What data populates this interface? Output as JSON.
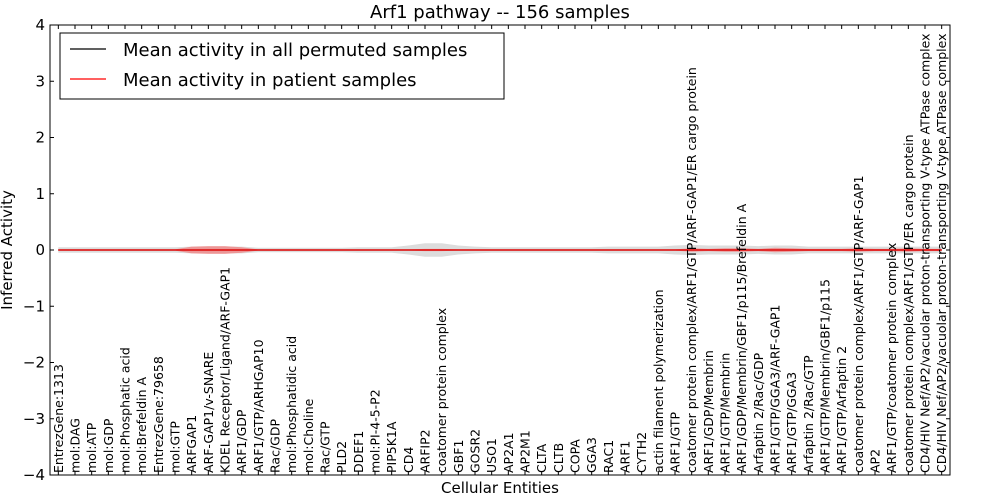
{
  "chart_data": {
    "type": "line",
    "title": "Arf1 pathway -- 156 samples",
    "xlabel": "Cellular Entities",
    "ylabel": "Inferred Activity",
    "ylim": [
      -4,
      4
    ],
    "yticks": [
      -4,
      -3,
      -2,
      -1,
      0,
      1,
      2,
      3,
      4
    ],
    "legend_position": "top-left",
    "grid": false,
    "categories": [
      "EntrezGene:1313",
      "mol:DAG",
      "mol:ATP",
      "mol:GDP",
      "mol:Phosphatic acid",
      "mol:Brefeldin A",
      "EntrezGene:79658",
      "mol:GTP",
      "ARFGAP1",
      "ARF-GAP1/v-SNARE",
      "KDEL Receptor/Ligand/ARF-GAP1",
      "ARF1/GDP",
      "ARF1/GTP/ARHGAP10",
      "Rac/GDP",
      "mol:Phosphatidic acid",
      "mol:Choline",
      "Rac/GTP",
      "PLD2",
      "DDEF1",
      "mol:PI-4-5-P2",
      "PIP5K1A",
      "CD4",
      "ARFIP2",
      "coatomer protein complex",
      "GBF1",
      "GOSR2",
      "USO1",
      "AP2A1",
      "AP2M1",
      "CLTA",
      "CLTB",
      "COPA",
      "GGA3",
      "RAC1",
      "ARF1",
      "CYTH2",
      "actin filament polymerization",
      "ARF1/GTP",
      "coatomer protein complex/ARF1/GTP/ARF-GAP1/ER cargo protein",
      "ARF1/GDP/Membrin",
      "ARF1/GTP/Membrin",
      "ARF1/GDP/Membrin/GBF1/p115/Brefeldin A",
      "Arfaptin 2/Rac/GDP",
      "ARF1/GTP/GGA3/ARF-GAP1",
      "ARF1/GTP/GGA3",
      "Arfaptin 2/Rac/GTP",
      "ARF1/GTP/Membrin/GBF1/p115",
      "ARF1/GTP/Arfaptin 2",
      "coatomer protein complex/ARF1/GTP/ARF-GAP1",
      "AP2",
      "ARF1/GTP/coatomer protein complex",
      "coatomer protein complex/ARF1/GTP/ER cargo protein",
      "CD4/HIV Nef/AP2/vacuolar proton-transporting V-type ATPase complex",
      "CD4/HIV Nef/AP2/vacuolar proton-transporting V-type ATPase complex"
    ],
    "series": [
      {
        "name": "Mean activity in all permuted samples",
        "color": "#000000",
        "band_color": "#d3d3d3",
        "values": [
          0,
          0,
          0,
          0,
          0,
          0,
          0,
          0,
          0,
          0,
          0,
          0,
          0,
          0,
          0,
          0,
          0,
          0,
          0,
          0,
          0,
          0,
          0,
          0,
          0,
          0,
          0,
          0,
          0,
          0,
          0,
          0,
          0,
          0,
          0,
          0,
          0,
          0,
          0,
          0,
          0,
          0,
          0,
          0,
          0,
          0,
          0,
          0,
          0,
          0,
          0,
          0,
          0,
          0
        ],
        "band": [
          0.05,
          0.05,
          0.05,
          0.05,
          0.05,
          0.05,
          0.05,
          0.05,
          0.06,
          0.06,
          0.06,
          0.06,
          0.04,
          0.04,
          0.04,
          0.04,
          0.04,
          0.04,
          0.05,
          0.05,
          0.05,
          0.08,
          0.12,
          0.12,
          0.08,
          0.06,
          0.05,
          0.05,
          0.05,
          0.05,
          0.05,
          0.05,
          0.05,
          0.06,
          0.06,
          0.06,
          0.06,
          0.08,
          0.09,
          0.08,
          0.08,
          0.08,
          0.07,
          0.08,
          0.08,
          0.06,
          0.06,
          0.06,
          0.06,
          0.06,
          0.06,
          0.06,
          0.06,
          0.06
        ]
      },
      {
        "name": "Mean activity in patient samples",
        "color": "#ff0000",
        "band_color": "#f08080",
        "values": [
          0,
          0,
          0,
          0,
          0,
          0,
          0,
          0,
          0,
          0,
          0,
          0,
          0,
          0,
          0,
          0,
          0,
          0,
          0,
          0,
          0,
          0,
          0,
          0,
          0,
          0,
          0,
          0,
          0,
          0,
          0,
          0,
          0,
          0,
          0,
          0,
          0,
          0,
          0,
          0,
          0,
          0,
          0,
          0,
          0,
          0,
          0,
          0,
          0,
          0,
          0,
          0,
          0,
          0
        ],
        "band": [
          0.01,
          0.01,
          0.01,
          0.01,
          0.01,
          0.01,
          0.01,
          0.01,
          0.06,
          0.07,
          0.07,
          0.05,
          0.01,
          0.01,
          0.01,
          0.01,
          0.01,
          0.01,
          0.01,
          0.01,
          0.01,
          0.01,
          0.02,
          0.02,
          0.01,
          0.01,
          0.01,
          0.01,
          0.01,
          0.01,
          0.01,
          0.01,
          0.01,
          0.01,
          0.01,
          0.01,
          0.01,
          0.01,
          0.03,
          0.02,
          0.03,
          0.03,
          0.02,
          0.04,
          0.03,
          0.02,
          0.02,
          0.02,
          0.03,
          0.02,
          0.02,
          0.03,
          0.02,
          0.02
        ]
      }
    ]
  }
}
